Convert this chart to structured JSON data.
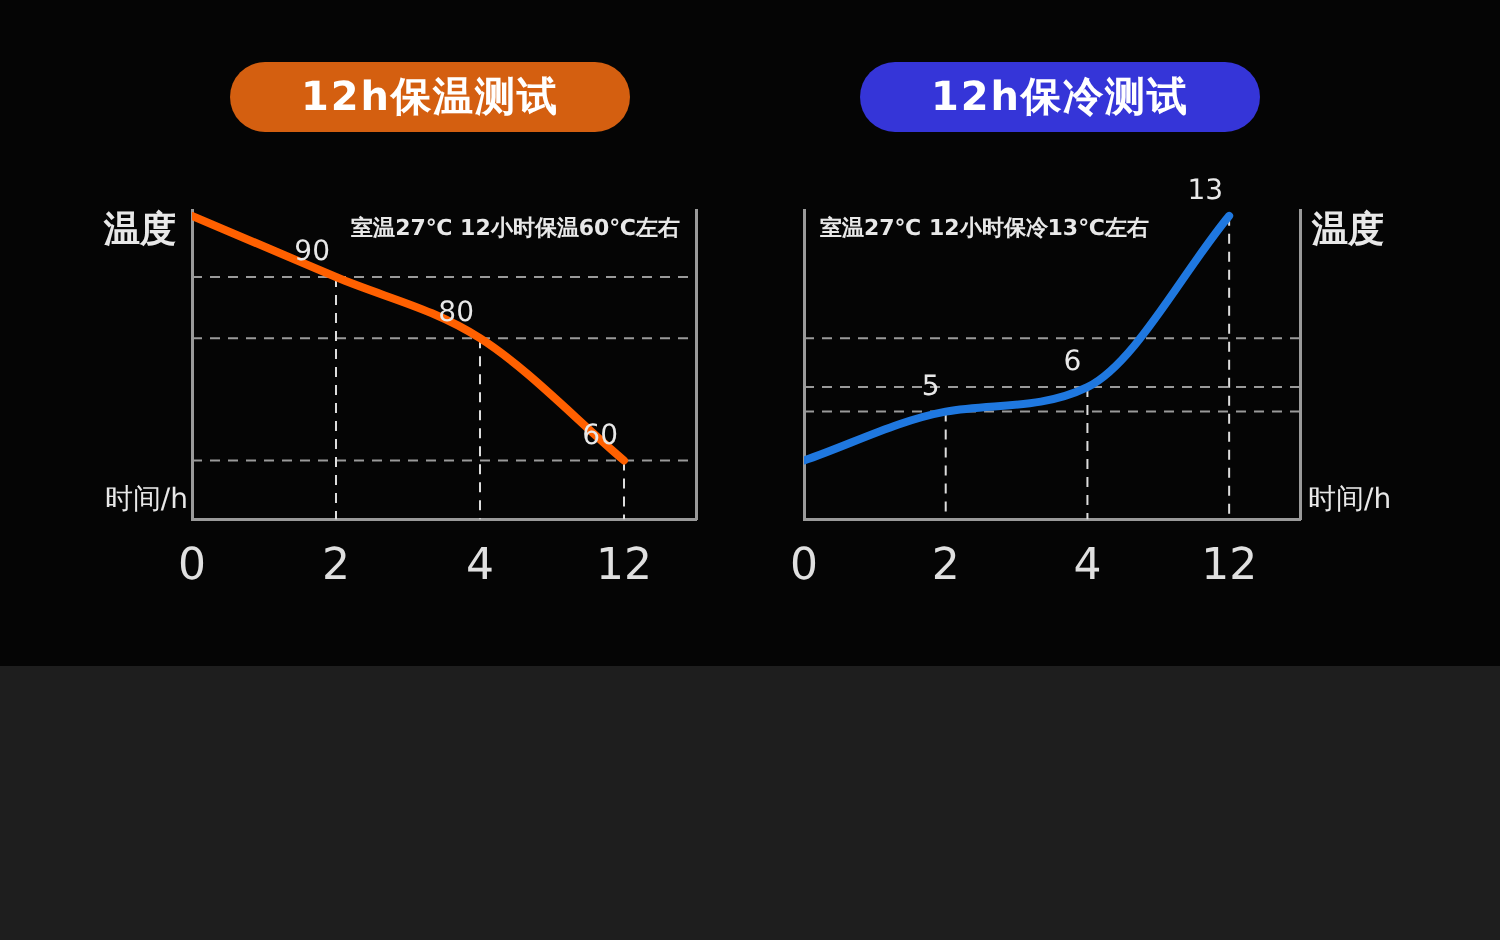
{
  "chart_data": [
    {
      "type": "line",
      "title": "12h保温测试",
      "ylabel": "温度",
      "xlabel": "时间/h",
      "annotations": [
        "室温27℃ 12小时保温60℃左右"
      ],
      "categories": [
        "0",
        "2",
        "4",
        "12"
      ],
      "series": [
        {
          "color": "#ff6000",
          "values": [
            100,
            90,
            80,
            60
          ],
          "value_labels": [
            null,
            "90",
            "80",
            "60"
          ]
        }
      ],
      "ref_lines": [
        {
          "axis": "y",
          "value": 90,
          "line_style": "dashed"
        },
        {
          "axis": "y",
          "value": 80,
          "line_style": "dashed"
        },
        {
          "axis": "y",
          "value": 60,
          "line_style": "dashed"
        }
      ]
    },
    {
      "type": "line",
      "title": "12h保冷测试",
      "y2label": "温度",
      "xlabel": "时间/h",
      "annotations": [
        "室温27℃ 12小时保冷13℃左右"
      ],
      "categories": [
        "0",
        "2",
        "4",
        "12"
      ],
      "series": [
        {
          "axis": "y2",
          "color": "#1f78e0",
          "values": [
            3,
            5,
            6,
            13
          ],
          "value_labels": [
            null,
            "5",
            "6",
            "13"
          ]
        }
      ],
      "ref_lines": [
        {
          "axis": "y2",
          "value": 5,
          "line_style": "dashed"
        },
        {
          "axis": "y2",
          "value": 6,
          "line_style": "dashed"
        },
        {
          "axis": "y2",
          "value": 8,
          "line_style": "dashed"
        }
      ]
    }
  ]
}
